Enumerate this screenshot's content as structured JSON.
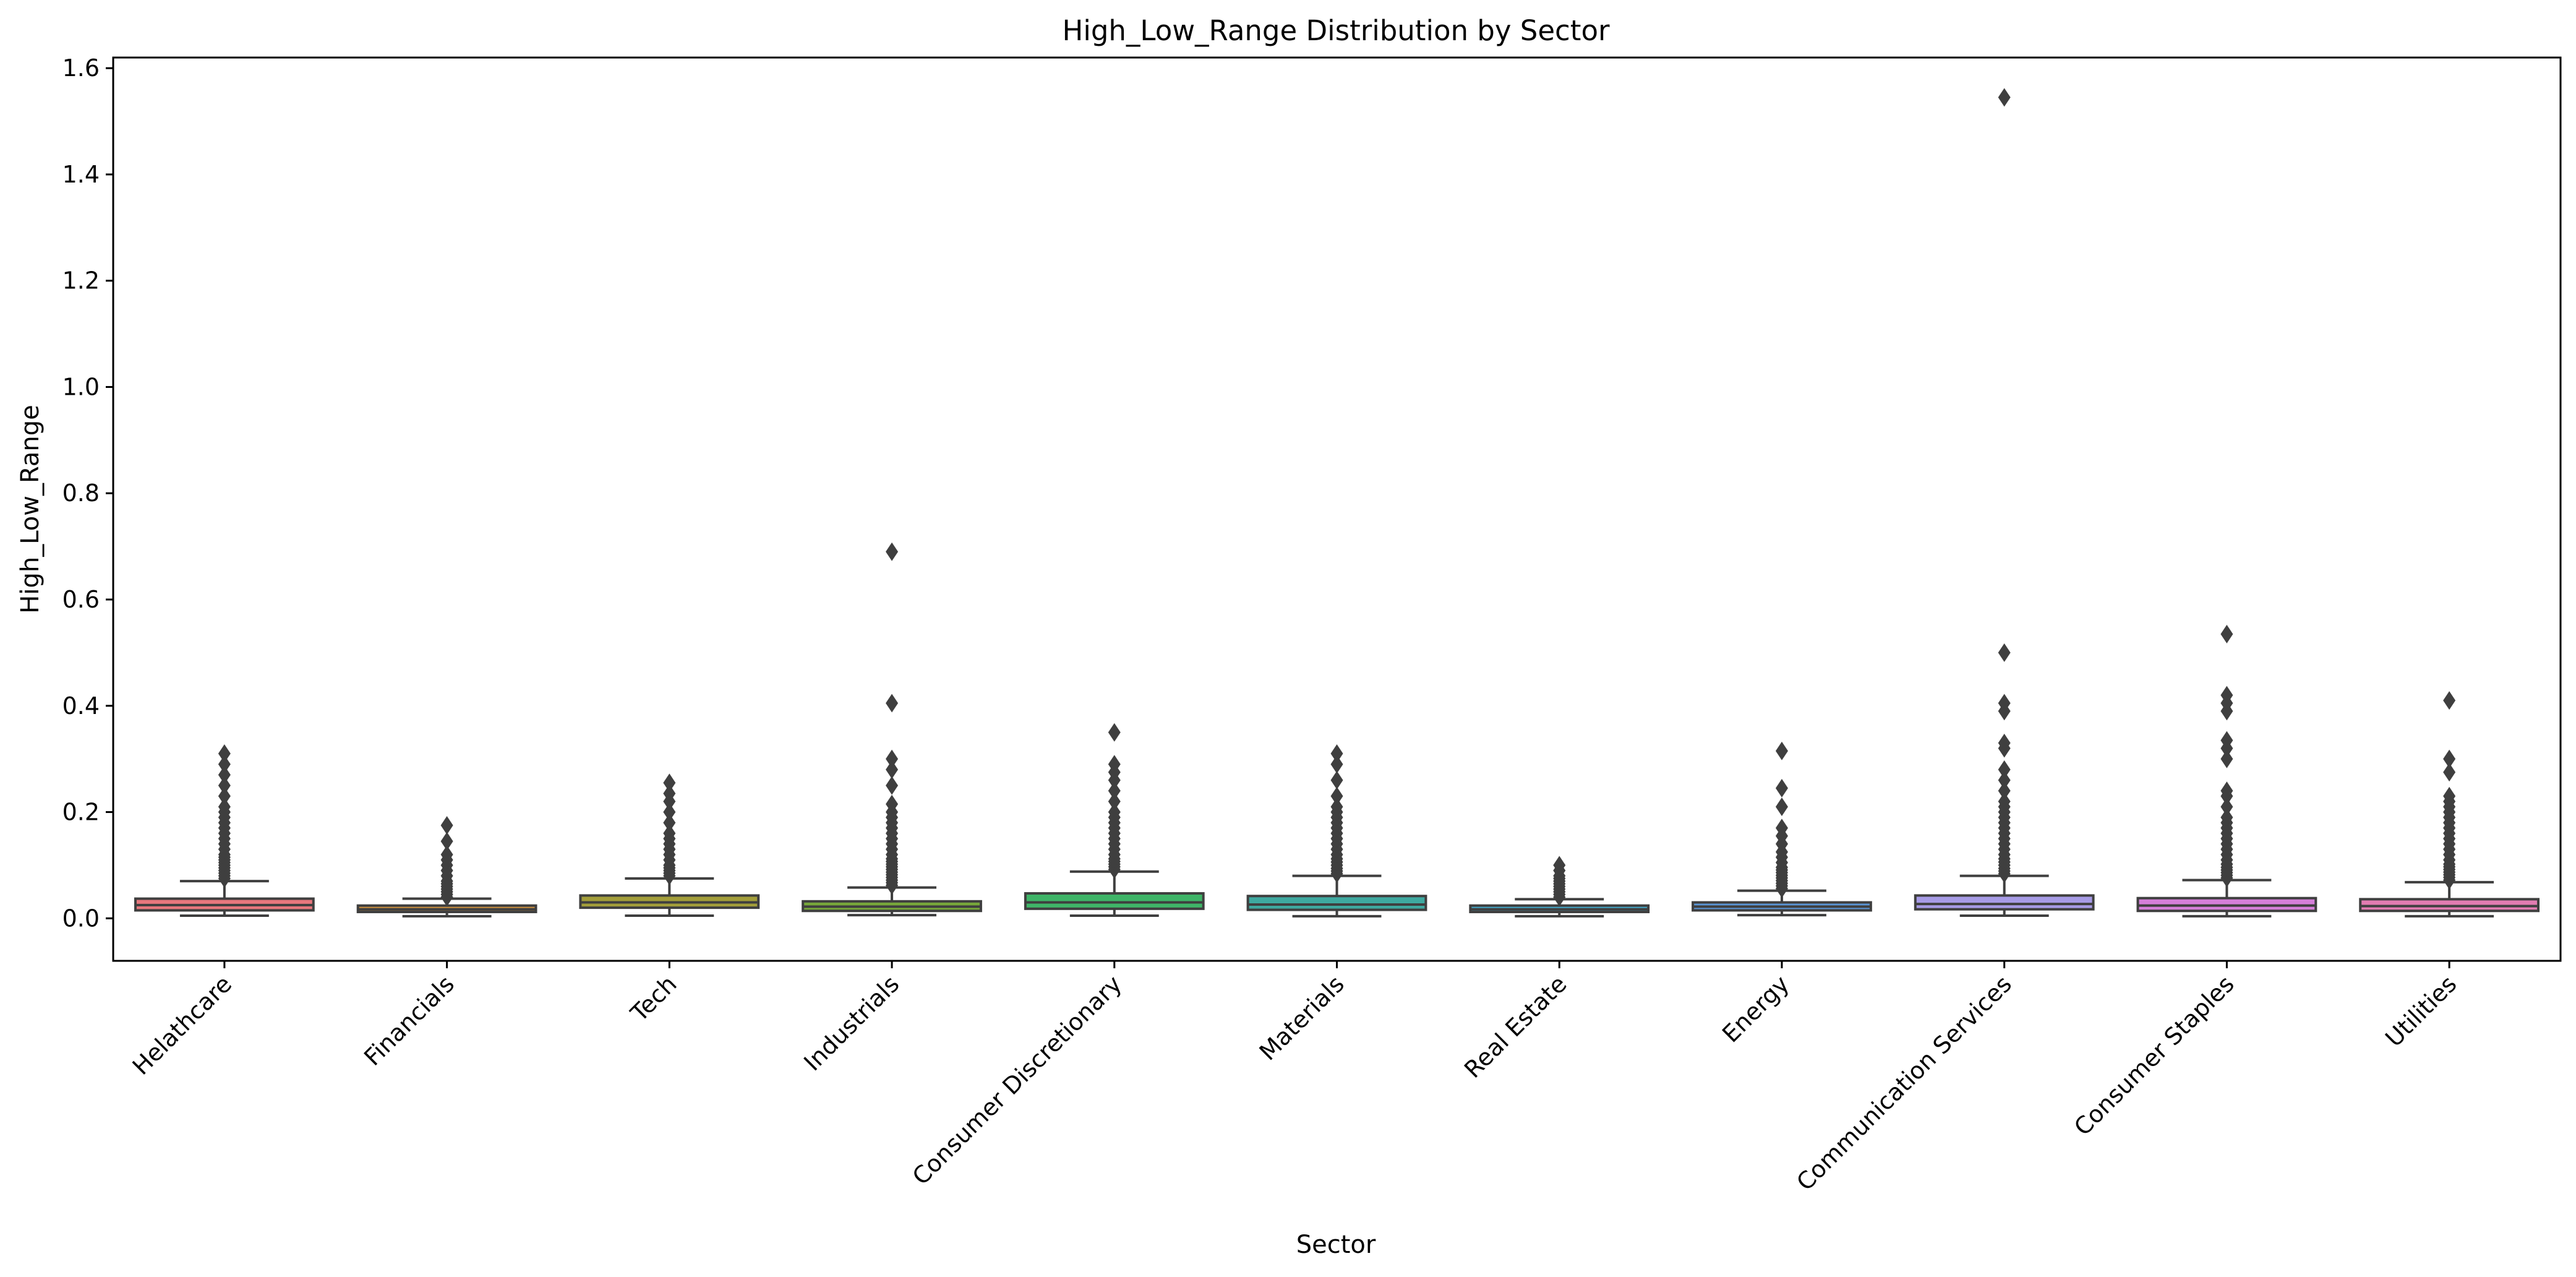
{
  "chart_data": {
    "type": "box",
    "title": "High_Low_Range Distribution by Sector",
    "xlabel": "Sector",
    "ylabel": "High_Low_Range",
    "ylim": [
      -0.08,
      1.62
    ],
    "yticks": [
      "0.0",
      "0.2",
      "0.4",
      "0.6",
      "0.8",
      "1.0",
      "1.2",
      "1.4",
      "1.6"
    ],
    "grid": false,
    "legend": "none",
    "categories": [
      "Helathcare",
      "Financials",
      "Tech",
      "Industrials",
      "Consumer Discretionary",
      "Materials",
      "Real Estate",
      "Energy",
      "Communication Services",
      "Consumer Staples",
      "Utilities"
    ],
    "series": [
      {
        "category": "Helathcare",
        "color": "#e8777d",
        "min": 0.005,
        "q1": 0.015,
        "median": 0.025,
        "q3": 0.037,
        "max": 0.07,
        "outliers": [
          0.075,
          0.08,
          0.085,
          0.09,
          0.095,
          0.1,
          0.105,
          0.11,
          0.115,
          0.12,
          0.13,
          0.14,
          0.15,
          0.16,
          0.17,
          0.18,
          0.19,
          0.2,
          0.21,
          0.23,
          0.25,
          0.27,
          0.29,
          0.31
        ]
      },
      {
        "category": "Financials",
        "color": "#c98e3f",
        "min": 0.004,
        "q1": 0.012,
        "median": 0.017,
        "q3": 0.024,
        "max": 0.037,
        "outliers": [
          0.04,
          0.045,
          0.05,
          0.055,
          0.06,
          0.065,
          0.07,
          0.08,
          0.09,
          0.1,
          0.11,
          0.12,
          0.145,
          0.175
        ]
      },
      {
        "category": "Tech",
        "color": "#a39e3a",
        "min": 0.005,
        "q1": 0.02,
        "median": 0.03,
        "q3": 0.043,
        "max": 0.075,
        "outliers": [
          0.08,
          0.085,
          0.09,
          0.095,
          0.1,
          0.11,
          0.12,
          0.13,
          0.14,
          0.15,
          0.16,
          0.18,
          0.2,
          0.22,
          0.235,
          0.255
        ]
      },
      {
        "category": "Industrials",
        "color": "#77a73a",
        "min": 0.006,
        "q1": 0.014,
        "median": 0.022,
        "q3": 0.032,
        "max": 0.058,
        "outliers": [
          0.062,
          0.067,
          0.072,
          0.077,
          0.082,
          0.087,
          0.092,
          0.097,
          0.102,
          0.107,
          0.112,
          0.12,
          0.13,
          0.14,
          0.15,
          0.16,
          0.17,
          0.18,
          0.19,
          0.2,
          0.215,
          0.25,
          0.28,
          0.3,
          0.405,
          0.69
        ]
      },
      {
        "category": "Consumer Discretionary",
        "color": "#3fb568",
        "min": 0.005,
        "q1": 0.018,
        "median": 0.03,
        "q3": 0.047,
        "max": 0.088,
        "outliers": [
          0.092,
          0.097,
          0.102,
          0.107,
          0.112,
          0.12,
          0.13,
          0.14,
          0.15,
          0.16,
          0.17,
          0.18,
          0.19,
          0.2,
          0.22,
          0.24,
          0.26,
          0.275,
          0.29,
          0.35
        ]
      },
      {
        "category": "Materials",
        "color": "#3ea9a0",
        "min": 0.004,
        "q1": 0.016,
        "median": 0.026,
        "q3": 0.042,
        "max": 0.08,
        "outliers": [
          0.084,
          0.089,
          0.094,
          0.1,
          0.106,
          0.112,
          0.12,
          0.13,
          0.14,
          0.15,
          0.16,
          0.17,
          0.18,
          0.19,
          0.2,
          0.21,
          0.23,
          0.26,
          0.29,
          0.31
        ]
      },
      {
        "category": "Real Estate",
        "color": "#43a3c4",
        "min": 0.004,
        "q1": 0.012,
        "median": 0.017,
        "q3": 0.024,
        "max": 0.036,
        "outliers": [
          0.04,
          0.045,
          0.05,
          0.055,
          0.06,
          0.065,
          0.07,
          0.075,
          0.08,
          0.09,
          0.1
        ]
      },
      {
        "category": "Energy",
        "color": "#5a95d6",
        "min": 0.006,
        "q1": 0.015,
        "median": 0.022,
        "q3": 0.03,
        "max": 0.052,
        "outliers": [
          0.056,
          0.061,
          0.066,
          0.071,
          0.076,
          0.081,
          0.086,
          0.091,
          0.096,
          0.105,
          0.115,
          0.125,
          0.14,
          0.155,
          0.17,
          0.21,
          0.245,
          0.315
        ]
      },
      {
        "category": "Communication Services",
        "color": "#a79be6",
        "min": 0.005,
        "q1": 0.017,
        "median": 0.027,
        "q3": 0.043,
        "max": 0.08,
        "outliers": [
          0.084,
          0.089,
          0.094,
          0.1,
          0.106,
          0.112,
          0.12,
          0.13,
          0.14,
          0.15,
          0.16,
          0.17,
          0.18,
          0.19,
          0.2,
          0.21,
          0.22,
          0.24,
          0.26,
          0.28,
          0.32,
          0.33,
          0.39,
          0.405,
          0.5,
          1.545
        ]
      },
      {
        "category": "Consumer Staples",
        "color": "#d57fd9",
        "min": 0.004,
        "q1": 0.014,
        "median": 0.024,
        "q3": 0.038,
        "max": 0.072,
        "outliers": [
          0.076,
          0.081,
          0.086,
          0.091,
          0.096,
          0.102,
          0.11,
          0.12,
          0.13,
          0.14,
          0.15,
          0.16,
          0.17,
          0.18,
          0.19,
          0.21,
          0.23,
          0.24,
          0.3,
          0.32,
          0.335,
          0.39,
          0.405,
          0.42,
          0.535
        ]
      },
      {
        "category": "Utilities",
        "color": "#e27cb1",
        "min": 0.004,
        "q1": 0.014,
        "median": 0.023,
        "q3": 0.036,
        "max": 0.068,
        "outliers": [
          0.072,
          0.077,
          0.082,
          0.087,
          0.092,
          0.097,
          0.102,
          0.11,
          0.12,
          0.13,
          0.14,
          0.15,
          0.16,
          0.17,
          0.18,
          0.19,
          0.2,
          0.21,
          0.22,
          0.23,
          0.275,
          0.3,
          0.41
        ]
      }
    ]
  }
}
